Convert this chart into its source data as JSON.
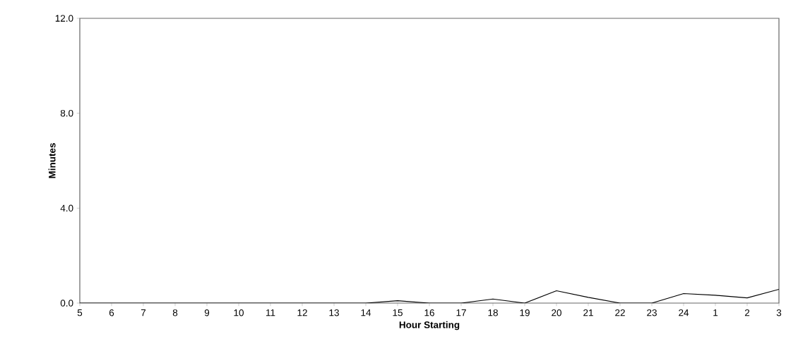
{
  "chart_data": {
    "type": "line",
    "xlabel": "Hour Starting",
    "ylabel": "Minutes",
    "categories": [
      "5",
      "6",
      "7",
      "8",
      "9",
      "10",
      "11",
      "12",
      "13",
      "14",
      "15",
      "16",
      "17",
      "18",
      "19",
      "20",
      "21",
      "22",
      "23",
      "24",
      "1",
      "2",
      "3"
    ],
    "series": [
      {
        "color": "#000000",
        "values": [
          0,
          0,
          0,
          0,
          0,
          0,
          0,
          0,
          0,
          0,
          0.1,
          0,
          0,
          0.17,
          0,
          0.52,
          0.24,
          0,
          0,
          0.4,
          0.33,
          0.22,
          0.58
        ]
      }
    ],
    "ylim": [
      0,
      12
    ],
    "yticks": [
      {
        "value": 0,
        "label": "0.0"
      },
      {
        "value": 4,
        "label": "4.0"
      },
      {
        "value": 8,
        "label": "8.0"
      },
      {
        "value": 12,
        "label": "12.0"
      }
    ],
    "grid": false,
    "marker": "none",
    "line_style": "solid"
  }
}
